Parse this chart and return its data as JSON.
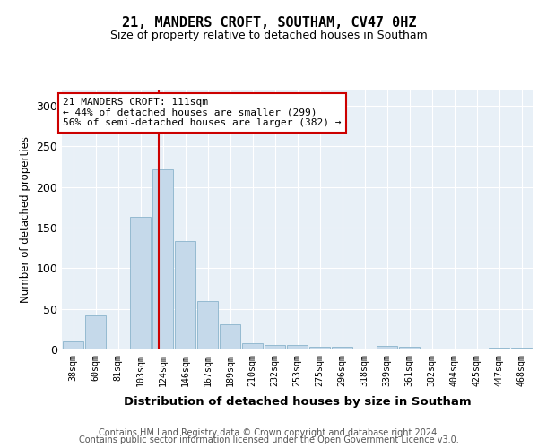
{
  "title1": "21, MANDERS CROFT, SOUTHAM, CV47 0HZ",
  "title2": "Size of property relative to detached houses in Southam",
  "xlabel": "Distribution of detached houses by size in Southam",
  "ylabel": "Number of detached properties",
  "categories": [
    "38sqm",
    "60sqm",
    "81sqm",
    "103sqm",
    "124sqm",
    "146sqm",
    "167sqm",
    "189sqm",
    "210sqm",
    "232sqm",
    "253sqm",
    "275sqm",
    "296sqm",
    "318sqm",
    "339sqm",
    "361sqm",
    "382sqm",
    "404sqm",
    "425sqm",
    "447sqm",
    "468sqm"
  ],
  "values": [
    10,
    42,
    0,
    163,
    222,
    133,
    60,
    31,
    8,
    5,
    5,
    3,
    3,
    0,
    4,
    3,
    0,
    1,
    0,
    2,
    2
  ],
  "bar_color": "#c5d9ea",
  "bar_edge_color": "#8ab4cc",
  "vline_x_index": 3.82,
  "vline_color": "#cc0000",
  "annotation_line1": "21 MANDERS CROFT: 111sqm",
  "annotation_line2": "← 44% of detached houses are smaller (299)",
  "annotation_line3": "56% of semi-detached houses are larger (382) →",
  "annotation_box_color": "white",
  "annotation_box_edge": "#cc0000",
  "ylim": [
    0,
    320
  ],
  "yticks": [
    0,
    50,
    100,
    150,
    200,
    250,
    300
  ],
  "footer_line1": "Contains HM Land Registry data © Crown copyright and database right 2024.",
  "footer_line2": "Contains public sector information licensed under the Open Government Licence v3.0.",
  "bg_color": "#ffffff",
  "plot_bg_color": "#e8f0f7",
  "grid_color": "#ffffff"
}
